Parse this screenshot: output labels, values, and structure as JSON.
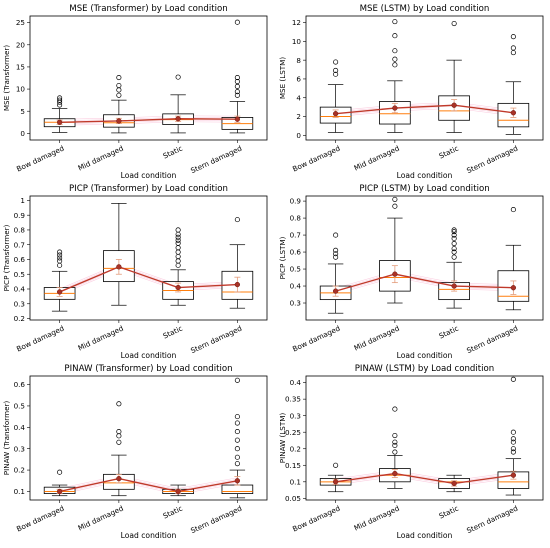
{
  "chart_data": [
    {
      "type": "box",
      "title": "MSE (Transformer) by Load condition",
      "xlabel": "Load condition",
      "ylabel": "MSE (Transformer)",
      "categories": [
        "Bow damaged",
        "Mid damaged",
        "Static",
        "Stern damaged"
      ],
      "ylim": [
        -1.5,
        26.5
      ],
      "yticks": [
        0,
        5,
        10,
        15,
        20,
        25
      ],
      "boxes": [
        {
          "whislo": 0.2,
          "q1": 1.5,
          "med": 2.5,
          "q3": 3.3,
          "whishi": 5.6,
          "fliers": [
            6.4,
            7.0,
            7.5,
            8.0
          ]
        },
        {
          "whislo": 0.1,
          "q1": 1.4,
          "med": 2.4,
          "q3": 4.2,
          "whishi": 7.5,
          "fliers": [
            8.6,
            9.8,
            10.8,
            12.6
          ]
        },
        {
          "whislo": 0.1,
          "q1": 2.0,
          "med": 3.1,
          "q3": 4.4,
          "whishi": 8.7,
          "fliers": [
            12.7
          ]
        },
        {
          "whislo": 0.1,
          "q1": 0.9,
          "med": 2.2,
          "q3": 3.6,
          "whishi": 7.2,
          "fliers": [
            8.6,
            9.4,
            10.6,
            11.7,
            12.6,
            25.1
          ]
        }
      ],
      "means": [
        2.5,
        2.8,
        3.3,
        3.2
      ],
      "mean_errors": [
        0.5,
        0.6,
        0.6,
        0.7
      ]
    },
    {
      "type": "box",
      "title": "MSE (LSTM) by Load condition",
      "xlabel": "Load condition",
      "ylabel": "MSE (LSTM)",
      "categories": [
        "Bow damaged",
        "Mid damaged",
        "Static",
        "Stern damaged"
      ],
      "ylim": [
        -0.5,
        12.7
      ],
      "yticks": [
        0,
        2,
        4,
        6,
        8,
        10,
        12
      ],
      "boxes": [
        {
          "whislo": 0.3,
          "q1": 1.3,
          "med": 2.0,
          "q3": 3.0,
          "whishi": 5.4,
          "fliers": [
            6.5,
            6.9,
            7.8
          ]
        },
        {
          "whislo": 0.3,
          "q1": 1.2,
          "med": 2.3,
          "q3": 3.6,
          "whishi": 5.8,
          "fliers": [
            7.5,
            8.1,
            9.0,
            10.6,
            12.1
          ]
        },
        {
          "whislo": 0.3,
          "q1": 1.6,
          "med": 2.6,
          "q3": 4.2,
          "whishi": 8.0,
          "fliers": [
            11.9
          ]
        },
        {
          "whislo": 0.1,
          "q1": 0.9,
          "med": 1.6,
          "q3": 3.4,
          "whishi": 5.7,
          "fliers": [
            8.8,
            9.3,
            10.5
          ]
        }
      ],
      "means": [
        2.3,
        2.9,
        3.2,
        2.4
      ],
      "mean_errors": [
        0.4,
        0.5,
        0.6,
        0.5
      ]
    },
    {
      "type": "box",
      "title": "PICP (Transformer) by Load condition",
      "xlabel": "Load condition",
      "ylabel": "PICP (Transformer)",
      "categories": [
        "Bow damaged",
        "Mid damaged",
        "Static",
        "Stern damaged"
      ],
      "ylim": [
        0.19,
        1.03
      ],
      "yticks": [
        0.2,
        0.3,
        0.4,
        0.5,
        0.6,
        0.7,
        0.8,
        0.9,
        1.0
      ],
      "boxes": [
        {
          "whislo": 0.25,
          "q1": 0.33,
          "med": 0.37,
          "q3": 0.41,
          "whishi": 0.52,
          "fliers": [
            0.56,
            0.59,
            0.61,
            0.63,
            0.65
          ]
        },
        {
          "whislo": 0.29,
          "q1": 0.45,
          "med": 0.54,
          "q3": 0.66,
          "whishi": 0.98,
          "fliers": []
        },
        {
          "whislo": 0.29,
          "q1": 0.33,
          "med": 0.39,
          "q3": 0.45,
          "whishi": 0.53,
          "fliers": [
            0.56,
            0.59,
            0.62,
            0.65,
            0.68,
            0.71,
            0.73,
            0.75,
            0.77,
            0.8
          ]
        },
        {
          "whislo": 0.27,
          "q1": 0.33,
          "med": 0.38,
          "q3": 0.52,
          "whishi": 0.7,
          "fliers": [
            0.87
          ]
        }
      ],
      "means": [
        0.38,
        0.55,
        0.41,
        0.43
      ],
      "mean_errors": [
        0.03,
        0.05,
        0.03,
        0.05
      ]
    },
    {
      "type": "box",
      "title": "PICP (LSTM) by Load condition",
      "xlabel": "Load condition",
      "ylabel": "PICP (LSTM)",
      "categories": [
        "Bow damaged",
        "Mid damaged",
        "Static",
        "Stern damaged"
      ],
      "ylim": [
        0.2,
        0.93
      ],
      "yticks": [
        0.3,
        0.4,
        0.5,
        0.6,
        0.7,
        0.8,
        0.9
      ],
      "boxes": [
        {
          "whislo": 0.24,
          "q1": 0.32,
          "med": 0.36,
          "q3": 0.4,
          "whishi": 0.53,
          "fliers": [
            0.57,
            0.59,
            0.61,
            0.7
          ]
        },
        {
          "whislo": 0.3,
          "q1": 0.37,
          "med": 0.45,
          "q3": 0.55,
          "whishi": 0.8,
          "fliers": [
            0.87,
            0.91
          ]
        },
        {
          "whislo": 0.27,
          "q1": 0.32,
          "med": 0.38,
          "q3": 0.42,
          "whishi": 0.54,
          "fliers": [
            0.57,
            0.6,
            0.62,
            0.65,
            0.68,
            0.7,
            0.72,
            0.73
          ]
        },
        {
          "whislo": 0.26,
          "q1": 0.31,
          "med": 0.34,
          "q3": 0.49,
          "whishi": 0.64,
          "fliers": [
            0.85
          ]
        }
      ],
      "means": [
        0.37,
        0.47,
        0.4,
        0.39
      ],
      "mean_errors": [
        0.03,
        0.05,
        0.03,
        0.04
      ]
    },
    {
      "type": "box",
      "title": "PINAW (Transformer) by Load condition",
      "xlabel": "Load condition",
      "ylabel": "PINAW (Transformer)",
      "categories": [
        "Bow damaged",
        "Mid damaged",
        "Static",
        "Stern damaged"
      ],
      "ylim": [
        0.06,
        0.64
      ],
      "yticks": [
        0.1,
        0.2,
        0.3,
        0.4,
        0.5,
        0.6
      ],
      "boxes": [
        {
          "whislo": 0.08,
          "q1": 0.09,
          "med": 0.1,
          "q3": 0.12,
          "whishi": 0.13,
          "fliers": [
            0.19
          ]
        },
        {
          "whislo": 0.08,
          "q1": 0.11,
          "med": 0.14,
          "q3": 0.18,
          "whishi": 0.27,
          "fliers": [
            0.33,
            0.36,
            0.38,
            0.51
          ]
        },
        {
          "whislo": 0.08,
          "q1": 0.09,
          "med": 0.1,
          "q3": 0.11,
          "whishi": 0.13,
          "fliers": []
        },
        {
          "whislo": 0.07,
          "q1": 0.09,
          "med": 0.1,
          "q3": 0.13,
          "whishi": 0.2,
          "fliers": [
            0.23,
            0.26,
            0.3,
            0.34,
            0.38,
            0.42,
            0.45,
            0.62
          ]
        }
      ],
      "means": [
        0.1,
        0.16,
        0.1,
        0.15
      ],
      "mean_errors": [
        0.01,
        0.02,
        0.01,
        0.02
      ]
    },
    {
      "type": "box",
      "title": "PINAW (LSTM) by Load condition",
      "xlabel": "Load condition",
      "ylabel": "PINAW (LSTM)",
      "categories": [
        "Bow damaged",
        "Mid damaged",
        "Static",
        "Stern damaged"
      ],
      "ylim": [
        0.045,
        0.42
      ],
      "yticks": [
        0.05,
        0.1,
        0.15,
        0.2,
        0.25,
        0.3,
        0.35,
        0.4
      ],
      "boxes": [
        {
          "whislo": 0.07,
          "q1": 0.09,
          "med": 0.1,
          "q3": 0.11,
          "whishi": 0.12,
          "fliers": [
            0.15
          ]
        },
        {
          "whislo": 0.08,
          "q1": 0.1,
          "med": 0.12,
          "q3": 0.14,
          "whishi": 0.18,
          "fliers": [
            0.19,
            0.21,
            0.22,
            0.24,
            0.32
          ]
        },
        {
          "whislo": 0.07,
          "q1": 0.08,
          "med": 0.1,
          "q3": 0.11,
          "whishi": 0.12,
          "fliers": []
        },
        {
          "whislo": 0.06,
          "q1": 0.08,
          "med": 0.1,
          "q3": 0.13,
          "whishi": 0.17,
          "fliers": [
            0.19,
            0.2,
            0.22,
            0.23,
            0.25,
            0.41
          ]
        }
      ],
      "means": [
        0.1,
        0.125,
        0.095,
        0.12
      ],
      "mean_errors": [
        0.008,
        0.012,
        0.008,
        0.012
      ]
    }
  ]
}
